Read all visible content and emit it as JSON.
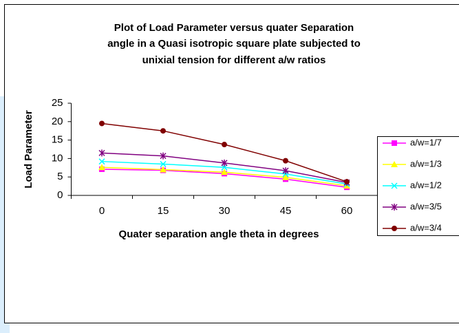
{
  "chart_data": {
    "type": "line",
    "title": [
      "Plot of Load Parameter versus quater Separation",
      "angle in a Quasi isotropic square plate subjected to",
      "unixial tension for different a/w ratios"
    ],
    "x_label": "Quater separation angle theta in degrees",
    "y_label": "Load Parameter",
    "categories": [
      "0",
      "15",
      "30",
      "45",
      "60"
    ],
    "ylim": [
      0,
      25
    ],
    "yticks": [
      0,
      5,
      10,
      15,
      20,
      25
    ],
    "legend": "right",
    "series": [
      {
        "name": "a/w=1/7",
        "color": "#ff00ff",
        "marker": "square",
        "values": [
          7.1,
          6.8,
          5.9,
          4.4,
          2.2
        ]
      },
      {
        "name": "a/w=1/3",
        "color": "#ffff00",
        "marker": "triangle",
        "values": [
          7.6,
          7.0,
          6.3,
          4.9,
          2.6
        ]
      },
      {
        "name": "a/w=1/2",
        "color": "#00ffff",
        "marker": "x",
        "values": [
          9.2,
          8.5,
          7.6,
          5.8,
          3.1
        ]
      },
      {
        "name": "a/w=3/5",
        "color": "#800080",
        "marker": "star",
        "values": [
          11.5,
          10.7,
          8.8,
          6.7,
          3.5
        ]
      },
      {
        "name": "a/w=3/4",
        "color": "#800000",
        "marker": "circle",
        "values": [
          19.5,
          17.5,
          13.8,
          9.4,
          3.7
        ]
      }
    ]
  }
}
